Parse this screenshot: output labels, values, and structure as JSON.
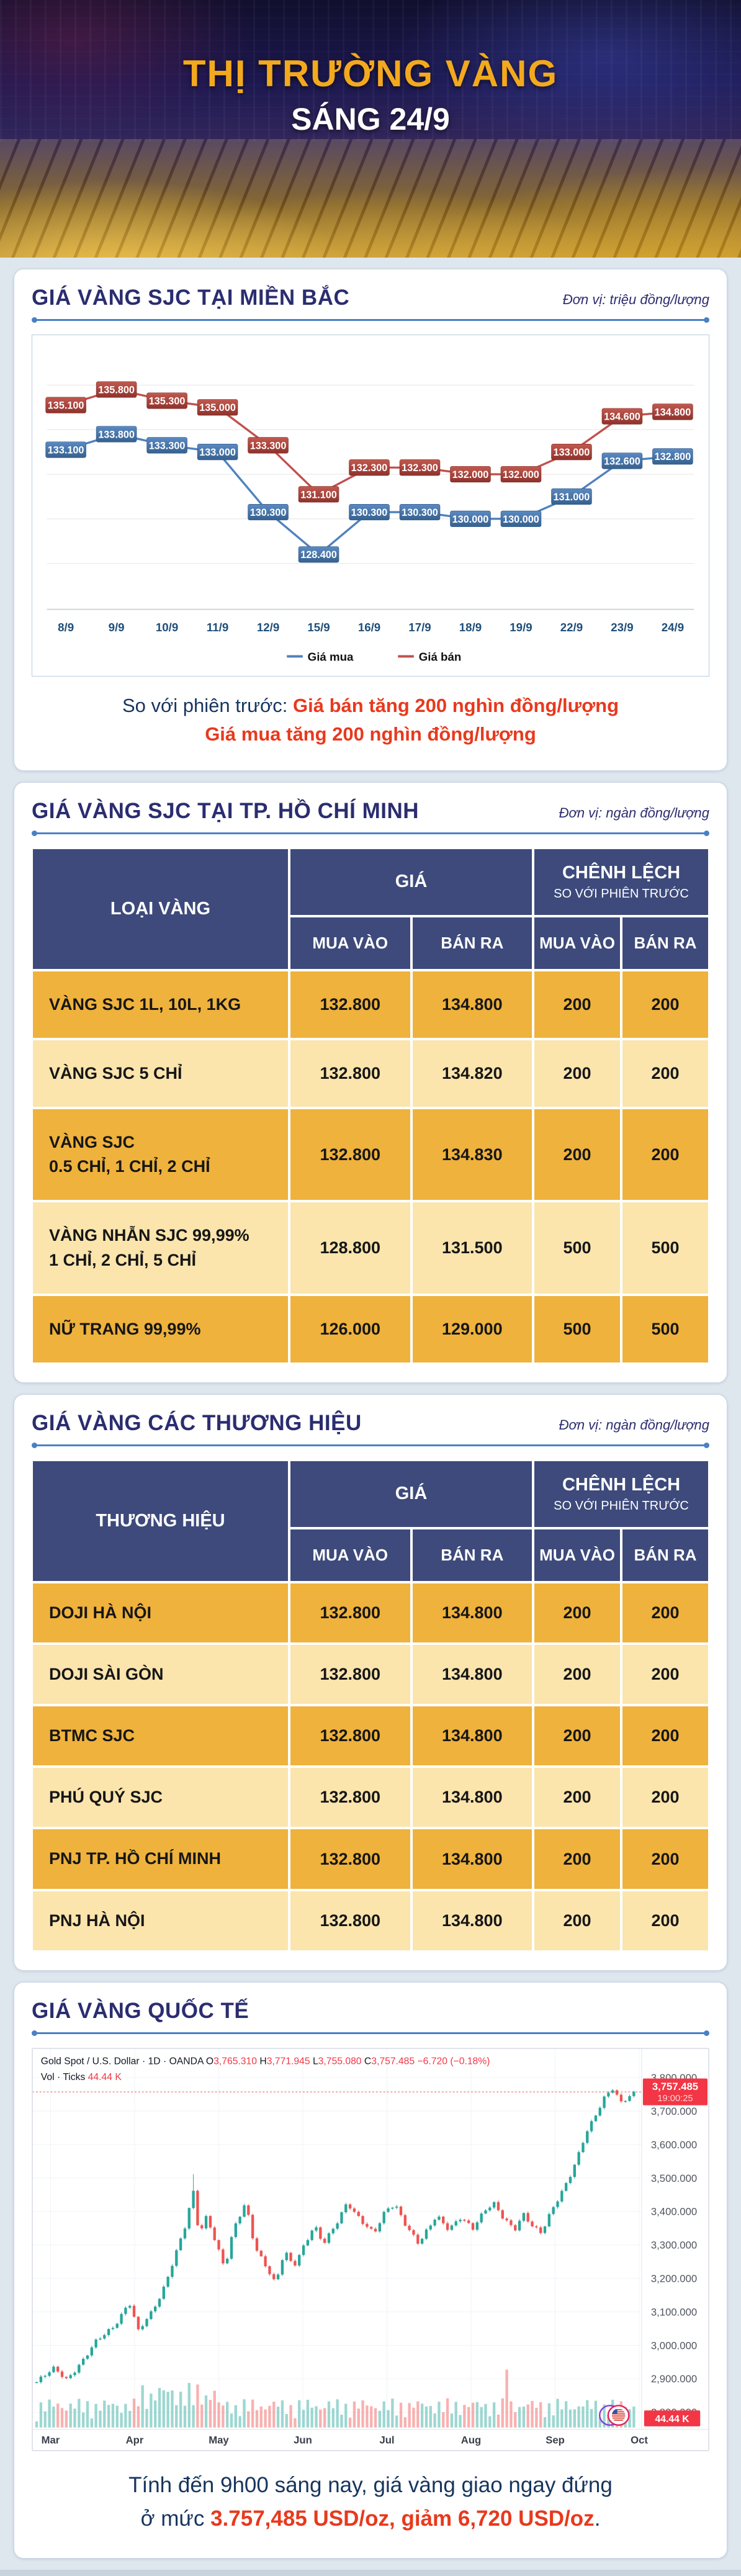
{
  "header": {
    "title": "THỊ TRƯỜNG VÀNG",
    "subtitle": "SÁNG 24/9"
  },
  "labels": {
    "gia": "GIÁ",
    "chenh_lech": "CHÊNH LỆCH",
    "so_voi": "SO VỚI PHIÊN TRƯỚC",
    "mua_vao": "MUA VÀO",
    "ban_ra": "BÁN RA"
  },
  "section_north": {
    "title": "GIÁ VÀNG SJC TẠI MIỀN BẮC",
    "unit": "Đơn vị: triệu đồng/lượng",
    "note_prefix": "So với phiên trước: ",
    "note_line1": "Giá bán tăng 200 nghìn đồng/lượng",
    "note_line2": "Giá mua tăng 200 nghìn đồng/lượng"
  },
  "section_hcm": {
    "title": "GIÁ VÀNG SJC TẠI TP. HỒ CHÍ MINH",
    "unit": "Đơn vị: ngàn đồng/lượng",
    "col_type": "LOẠI VÀNG",
    "rows": [
      {
        "name": "VÀNG SJC 1L, 10L, 1KG",
        "name2": "",
        "buy": "132.800",
        "sell": "134.800",
        "dbuy": "200",
        "dsell": "200"
      },
      {
        "name": "VÀNG SJC 5 CHỈ",
        "name2": "",
        "buy": "132.800",
        "sell": "134.820",
        "dbuy": "200",
        "dsell": "200"
      },
      {
        "name": "VÀNG SJC",
        "name2": "0.5 CHỈ, 1 CHỈ, 2 CHỈ",
        "buy": "132.800",
        "sell": "134.830",
        "dbuy": "200",
        "dsell": "200"
      },
      {
        "name": "VÀNG NHẪN SJC 99,99%",
        "name2": "1 CHỈ, 2 CHỈ, 5 CHỈ",
        "buy": "128.800",
        "sell": "131.500",
        "dbuy": "500",
        "dsell": "500"
      },
      {
        "name": "NỮ TRANG 99,99%",
        "name2": "",
        "buy": "126.000",
        "sell": "129.000",
        "dbuy": "500",
        "dsell": "500"
      }
    ]
  },
  "section_brands": {
    "title": "GIÁ VÀNG CÁC THƯƠNG HIỆU",
    "unit": "Đơn vị: ngàn đồng/lượng",
    "col_type": "THƯƠNG HIỆU",
    "rows": [
      {
        "name": "DOJI HÀ NỘI",
        "name2": "",
        "buy": "132.800",
        "sell": "134.800",
        "dbuy": "200",
        "dsell": "200"
      },
      {
        "name": "DOJI SÀI GÒN",
        "name2": "",
        "buy": "132.800",
        "sell": "134.800",
        "dbuy": "200",
        "dsell": "200"
      },
      {
        "name": "BTMC SJC",
        "name2": "",
        "buy": "132.800",
        "sell": "134.800",
        "dbuy": "200",
        "dsell": "200"
      },
      {
        "name": "PHÚ QUÝ SJC",
        "name2": "",
        "buy": "132.800",
        "sell": "134.800",
        "dbuy": "200",
        "dsell": "200"
      },
      {
        "name": "PNJ TP. HỒ CHÍ MINH",
        "name2": "",
        "buy": "132.800",
        "sell": "134.800",
        "dbuy": "200",
        "dsell": "200"
      },
      {
        "name": "PNJ HÀ NỘI",
        "name2": "",
        "buy": "132.800",
        "sell": "134.800",
        "dbuy": "200",
        "dsell": "200"
      }
    ]
  },
  "section_world": {
    "title": "GIÁ VÀNG QUỐC TẾ",
    "footer_line1": "Tính đến 9h00 sáng nay, giá vàng giao ngay đứng",
    "footer_prefix": "ở mức ",
    "footer_red": "3.757,485 USD/oz, giảm 6,720 USD/oz",
    "footer_suffix": "."
  },
  "chart_data": [
    {
      "type": "line",
      "title": "GIÁ VÀNG SJC TẠI MIỀN BẮC",
      "ylabel": "triệu đồng/lượng",
      "categories": [
        "8/9",
        "9/9",
        "10/9",
        "11/9",
        "12/9",
        "15/9",
        "16/9",
        "17/9",
        "18/9",
        "19/9",
        "22/9",
        "23/9",
        "24/9"
      ],
      "series": [
        {
          "name": "Giá mua",
          "color_top": "#5b8ac2",
          "color_bottom": "#36618f",
          "line_color": "#4F81BD",
          "values": [
            133.1,
            133.8,
            133.3,
            133.0,
            130.3,
            128.4,
            130.3,
            130.3,
            130.0,
            130.0,
            131.0,
            132.6,
            132.8
          ]
        },
        {
          "name": "Giá bán",
          "color_top": "#c2594f",
          "color_bottom": "#8f322c",
          "line_color": "#C0504D",
          "values": [
            135.1,
            135.8,
            135.3,
            135.0,
            133.3,
            131.1,
            132.3,
            132.3,
            132.0,
            132.0,
            133.0,
            134.6,
            134.8
          ]
        }
      ],
      "ylim": [
        126.5,
        137.5
      ],
      "grid": true,
      "legend_position": "bottom"
    },
    {
      "type": "candlestick",
      "symbol": "Gold Spot / U.S. Dollar",
      "interval": "1D",
      "exchange": "OANDA",
      "open": "3,765.310",
      "high": "3,771.945",
      "low": "3,755.080",
      "close": "3,757.485",
      "change": "−6.720 (−0.18%)",
      "vol_label": "Vol · Ticks",
      "volume": "44.44 K",
      "last_price": "3,757.485",
      "last_price_value": 3757.485,
      "last_time": "19:00:25",
      "x_ticks": [
        "Mar",
        "Apr",
        "May",
        "Jun",
        "Jul",
        "Aug",
        "Sep",
        "Oct"
      ],
      "y_ticks": [
        "3,800.000",
        "3,700.000",
        "3,600.000",
        "3,500.000",
        "3,400.000",
        "3,300.000",
        "3,200.000",
        "3,100.000",
        "3,000.000",
        "2,900.000",
        "2,800.000"
      ],
      "ylim": [
        2760,
        3850
      ],
      "colors": {
        "up": "#26a69a",
        "down": "#ef5350",
        "accent": "#f23645"
      },
      "price_path": [
        [
          0,
          2890
        ],
        [
          0.03,
          2930
        ],
        [
          0.05,
          2900
        ],
        [
          0.08,
          2960
        ],
        [
          0.1,
          3010
        ],
        [
          0.13,
          3060
        ],
        [
          0.155,
          3130
        ],
        [
          0.17,
          3040
        ],
        [
          0.19,
          3090
        ],
        [
          0.21,
          3160
        ],
        [
          0.23,
          3260
        ],
        [
          0.25,
          3360
        ],
        [
          0.262,
          3460
        ],
        [
          0.272,
          3330
        ],
        [
          0.285,
          3390
        ],
        [
          0.3,
          3310
        ],
        [
          0.315,
          3230
        ],
        [
          0.33,
          3345
        ],
        [
          0.35,
          3425
        ],
        [
          0.365,
          3300
        ],
        [
          0.385,
          3235
        ],
        [
          0.4,
          3180
        ],
        [
          0.415,
          3280
        ],
        [
          0.43,
          3235
        ],
        [
          0.45,
          3310
        ],
        [
          0.465,
          3360
        ],
        [
          0.48,
          3300
        ],
        [
          0.5,
          3355
        ],
        [
          0.52,
          3430
        ],
        [
          0.545,
          3370
        ],
        [
          0.565,
          3330
        ],
        [
          0.585,
          3405
        ],
        [
          0.6,
          3425
        ],
        [
          0.62,
          3355
        ],
        [
          0.64,
          3300
        ],
        [
          0.655,
          3345
        ],
        [
          0.67,
          3390
        ],
        [
          0.69,
          3350
        ],
        [
          0.71,
          3380
        ],
        [
          0.73,
          3345
        ],
        [
          0.75,
          3405
        ],
        [
          0.765,
          3430
        ],
        [
          0.78,
          3385
        ],
        [
          0.8,
          3340
        ],
        [
          0.815,
          3390
        ],
        [
          0.83,
          3360
        ],
        [
          0.845,
          3340
        ],
        [
          0.86,
          3395
        ],
        [
          0.875,
          3440
        ],
        [
          0.89,
          3490
        ],
        [
          0.905,
          3560
        ],
        [
          0.92,
          3640
        ],
        [
          0.935,
          3685
        ],
        [
          0.95,
          3735
        ],
        [
          0.965,
          3765
        ],
        [
          0.978,
          3725
        ],
        [
          0.99,
          3745
        ],
        [
          1,
          3757
        ]
      ]
    }
  ]
}
